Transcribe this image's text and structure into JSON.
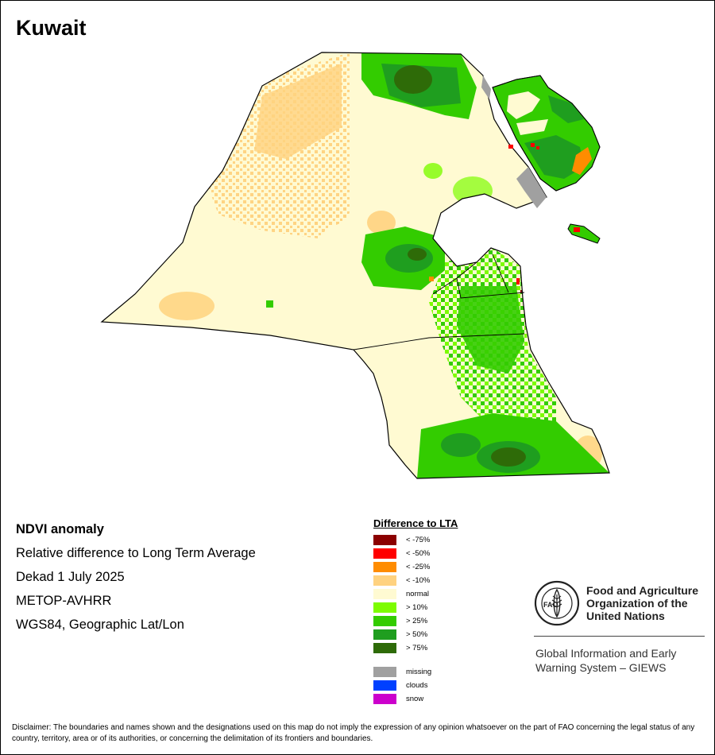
{
  "map_title": "Kuwait",
  "info": {
    "heading": "NDVI anomaly",
    "line1": "Relative difference to Long Term Average",
    "line2": "Dekad 1 July 2025",
    "line3": "METOP-AVHRR",
    "line4": "WGS84, Geographic Lat/Lon"
  },
  "legend": {
    "title": "Difference to LTA",
    "classes": [
      {
        "label": "< -75%",
        "color": "#8b0000"
      },
      {
        "label": "< -50%",
        "color": "#ff0000"
      },
      {
        "label": "< -25%",
        "color": "#ff8c00"
      },
      {
        "label": "< -10%",
        "color": "#ffd27f"
      },
      {
        "label": "normal",
        "color": "#fffad2"
      },
      {
        "label": "> 10%",
        "color": "#7dfc00"
      },
      {
        "label": "> 25%",
        "color": "#33cc00"
      },
      {
        "label": "> 50%",
        "color": "#1f9e1f"
      },
      {
        "label": "> 75%",
        "color": "#2e6b08"
      }
    ],
    "extra": [
      {
        "label": "missing",
        "color": "#a0a0a0"
      },
      {
        "label": "clouds",
        "color": "#0040ff"
      },
      {
        "label": "snow",
        "color": "#cc00cc"
      }
    ]
  },
  "organization": {
    "name": "Food and Agriculture Organization of the United Nations",
    "system": "Global Information and Early Warning System – GIEWS",
    "logo_text": "FAO",
    "logo_ring_text": "FIAT PANIS"
  },
  "disclaimer": "Disclaimer: The boundaries and names shown and the designations used on this map do not imply the expression of any opinion whatsoever on the part of FAO concerning the legal status of any country, territory, area or of its authorities, or concerning the delimitation of its frontiers and boundaries."
}
